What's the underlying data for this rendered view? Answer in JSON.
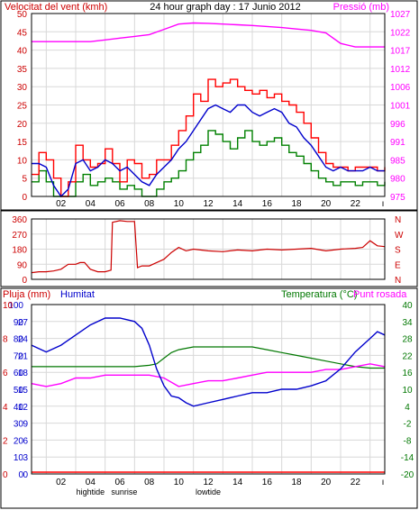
{
  "panel_wind": {
    "title_left": "Velocitat del vent (kmh)",
    "title_center": "24 hour graph day : 17 Junio 2012",
    "title_right": "Pressió (mb)",
    "yticks_left": [
      "50",
      "45",
      "40",
      "35",
      "30",
      "25",
      "20",
      "15",
      "10",
      "5",
      "0"
    ],
    "yticks_right": [
      "1027",
      "1022",
      "1017",
      "1012",
      "1006",
      "1001",
      "996",
      "991",
      "985",
      "980",
      "975"
    ],
    "xticks": [
      "02",
      "04",
      "06",
      "08",
      "10",
      "12",
      "14",
      "16",
      "18",
      "20",
      "22"
    ],
    "events": [
      "hightide",
      "sunrise",
      "lowtide"
    ]
  },
  "panel_dir": {
    "yticks_left": [
      "360",
      "270",
      "180",
      "90",
      "0"
    ],
    "compass": [
      "N",
      "W",
      "S",
      "E",
      "N"
    ]
  },
  "panel_temp": {
    "title_pluja": "Pluja (mm)",
    "title_humitat": "Humitat",
    "title_temp": "Temperatura (°C)",
    "title_dew": "Punt rosada",
    "yticks_pluja": [
      "10",
      "8",
      "6",
      "4",
      "2",
      "0"
    ],
    "yticks_humitat": [
      "100",
      "90",
      "80",
      "70",
      "60",
      "50",
      "40",
      "30",
      "20",
      "10",
      "0"
    ],
    "yticks_sub": [
      "27",
      "24",
      "21",
      "18",
      "15",
      "12",
      "9",
      "6",
      "3",
      "0"
    ],
    "yticks_temp": [
      "40",
      "34",
      "28",
      "22",
      "16",
      "10",
      "4",
      "-2",
      "-8",
      "-14",
      "-20"
    ],
    "xticks": [
      "02",
      "04",
      "06",
      "08",
      "10",
      "12",
      "14",
      "16",
      "18",
      "20",
      "22"
    ],
    "events": [
      "hightide",
      "sunrise",
      "lowtide"
    ]
  },
  "colors": {
    "wind_gust": "#ff0000",
    "wind_avg": "#0000cc",
    "wind_low": "#008000",
    "pressure": "#ff00ff",
    "direction": "#cc0000",
    "humidity": "#0000cc",
    "temperature": "#007700",
    "dewpoint": "#ff00ff",
    "rain": "#ff0000"
  },
  "chart_data": [
    {
      "type": "line",
      "title": "24 hour graph day : 17 Junio 2012",
      "x_unit": "hour",
      "xlim": [
        0,
        24
      ],
      "series": [
        {
          "name": "Velocitat del vent (kmh)",
          "axis": "left",
          "ylim": [
            0,
            50
          ],
          "x": [
            0,
            0.5,
            1,
            1.5,
            2,
            2.5,
            3,
            3.5,
            4,
            4.5,
            5,
            5.5,
            6,
            6.5,
            7,
            7.5,
            8,
            8.5,
            9,
            9.5,
            10,
            10.5,
            11,
            11.5,
            12,
            12.5,
            13,
            13.5,
            14,
            14.5,
            15,
            15.5,
            16,
            16.5,
            17,
            17.5,
            18,
            18.5,
            19,
            19.5,
            20,
            20.5,
            21,
            21.5,
            22,
            22.5,
            23,
            23.5,
            24
          ],
          "values": [
            6,
            12,
            10,
            5,
            0,
            4,
            14,
            10,
            8,
            9,
            13,
            9,
            4,
            10,
            9,
            5,
            6,
            10,
            10,
            14,
            18,
            22,
            28,
            26,
            32,
            30,
            31,
            32,
            30,
            29,
            28,
            29,
            27,
            28,
            26,
            25,
            23,
            20,
            16,
            12,
            9,
            8,
            8,
            7,
            8,
            8,
            8,
            7,
            8
          ]
        },
        {
          "name": "Velocitat mitjana",
          "axis": "left",
          "ylim": [
            0,
            50
          ],
          "x": [
            0,
            0.5,
            1,
            1.5,
            2,
            2.5,
            3,
            3.5,
            4,
            4.5,
            5,
            5.5,
            6,
            6.5,
            7,
            7.5,
            8,
            8.5,
            9,
            9.5,
            10,
            10.5,
            11,
            11.5,
            12,
            12.5,
            13,
            13.5,
            14,
            14.5,
            15,
            15.5,
            16,
            16.5,
            17,
            17.5,
            18,
            18.5,
            19,
            19.5,
            20,
            20.5,
            21,
            21.5,
            22,
            22.5,
            23,
            23.5,
            24
          ],
          "values": [
            9,
            9,
            8,
            3,
            0,
            2,
            9,
            10,
            7,
            8,
            10,
            9,
            7,
            8,
            6,
            4,
            3,
            6,
            8,
            10,
            13,
            15,
            18,
            21,
            24,
            25,
            24,
            23,
            25,
            25,
            23,
            22,
            23,
            24,
            23,
            20,
            19,
            16,
            14,
            11,
            8,
            7,
            8,
            7,
            7,
            7,
            8,
            7,
            7
          ]
        },
        {
          "name": "Velocitat mínima",
          "axis": "left",
          "ylim": [
            0,
            50
          ],
          "x": [
            0,
            0.5,
            1,
            1.5,
            2,
            2.5,
            3,
            3.5,
            4,
            4.5,
            5,
            5.5,
            6,
            6.5,
            7,
            7.5,
            8,
            8.5,
            9,
            9.5,
            10,
            10.5,
            11,
            11.5,
            12,
            12.5,
            13,
            13.5,
            14,
            14.5,
            15,
            15.5,
            16,
            16.5,
            17,
            17.5,
            18,
            18.5,
            19,
            19.5,
            20,
            20.5,
            21,
            21.5,
            22,
            22.5,
            23,
            23.5,
            24
          ],
          "values": [
            4,
            7,
            4,
            0,
            0,
            0,
            4,
            6,
            3,
            4,
            5,
            4,
            2,
            3,
            2,
            0,
            0,
            2,
            4,
            5,
            7,
            10,
            12,
            14,
            18,
            17,
            15,
            13,
            16,
            18,
            15,
            14,
            15,
            16,
            14,
            12,
            11,
            9,
            7,
            5,
            4,
            3,
            4,
            4,
            3,
            4,
            4,
            3,
            4
          ]
        },
        {
          "name": "Pressió (mb)",
          "axis": "right",
          "ylim": [
            975,
            1027
          ],
          "x": [
            0,
            1,
            2,
            3,
            4,
            5,
            6,
            7,
            8,
            9,
            10,
            11,
            12,
            13,
            14,
            15,
            16,
            17,
            18,
            19,
            20,
            21,
            22,
            23,
            24
          ],
          "values": [
            1019,
            1019,
            1019,
            1019,
            1019,
            1019.5,
            1020,
            1020.5,
            1021,
            1022.5,
            1024,
            1024.3,
            1024.2,
            1024,
            1023.8,
            1023.6,
            1023.3,
            1023,
            1022.6,
            1022.2,
            1021.5,
            1018.5,
            1017.5,
            1017.5,
            1017.5
          ]
        }
      ],
      "annotations": [
        "hightide",
        "sunrise",
        "lowtide"
      ]
    },
    {
      "type": "line",
      "xlim": [
        0,
        24
      ],
      "series": [
        {
          "name": "Direcció del vent",
          "ylim": [
            0,
            360
          ],
          "x": [
            0,
            0.5,
            1,
            1.5,
            2,
            2.5,
            3,
            3.3,
            3.6,
            4,
            4.5,
            5,
            5.4,
            5.5,
            6,
            6.5,
            7,
            7.2,
            7.5,
            8,
            8.5,
            9,
            9.5,
            10,
            10.5,
            11,
            12,
            13,
            14,
            15,
            16,
            17,
            18,
            19,
            20,
            21,
            22,
            22.5,
            23,
            23.5,
            24
          ],
          "values": [
            40,
            45,
            45,
            50,
            60,
            90,
            90,
            100,
            100,
            60,
            45,
            45,
            55,
            340,
            350,
            345,
            345,
            70,
            80,
            80,
            100,
            120,
            160,
            190,
            170,
            180,
            170,
            165,
            175,
            170,
            180,
            175,
            180,
            185,
            170,
            180,
            185,
            190,
            230,
            200,
            195
          ]
        }
      ]
    },
    {
      "type": "line",
      "xlim": [
        0,
        24
      ],
      "series": [
        {
          "name": "Humitat",
          "axis": "left",
          "ylim": [
            0,
            100
          ],
          "x": [
            0,
            1,
            2,
            3,
            4,
            5,
            6,
            7,
            7.5,
            8,
            8.5,
            9,
            9.5,
            10,
            10.5,
            11,
            12,
            13,
            14,
            15,
            16,
            17,
            18,
            19,
            20,
            21,
            22,
            23,
            23.5,
            24
          ],
          "values": [
            76,
            72,
            76,
            82,
            88,
            92,
            92,
            90,
            86,
            76,
            62,
            52,
            46,
            45,
            42,
            40,
            42,
            44,
            46,
            48,
            48,
            50,
            50,
            52,
            55,
            62,
            72,
            80,
            84,
            82
          ]
        },
        {
          "name": "Temperatura (°C)",
          "axis": "right",
          "ylim": [
            -20,
            40
          ],
          "x": [
            0,
            1,
            2,
            3,
            4,
            5,
            6,
            7,
            8,
            8.5,
            9,
            9.5,
            10,
            11,
            12,
            13,
            14,
            15,
            16,
            17,
            18,
            19,
            20,
            21,
            22,
            23,
            24
          ],
          "values": [
            18,
            18,
            18,
            18,
            18,
            18,
            18,
            18,
            18.5,
            19,
            21,
            23,
            24,
            25,
            25,
            25,
            25,
            25,
            24,
            23,
            22,
            21,
            20,
            19,
            18,
            17.5,
            17.5
          ]
        },
        {
          "name": "Punt rosada",
          "axis": "right",
          "ylim": [
            -20,
            40
          ],
          "x": [
            0,
            1,
            2,
            3,
            4,
            5,
            6,
            7,
            8,
            9,
            10,
            11,
            12,
            13,
            14,
            15,
            16,
            17,
            18,
            19,
            20,
            21,
            22,
            23,
            24
          ],
          "values": [
            12,
            11,
            12,
            14,
            14,
            15,
            15,
            15,
            15,
            14,
            11,
            12,
            13,
            13,
            14,
            15,
            16,
            16,
            16,
            16,
            17,
            17,
            18,
            19,
            18
          ]
        },
        {
          "name": "Pluja (mm)",
          "axis": "left2",
          "ylim": [
            0,
            10
          ],
          "x": [
            0,
            24
          ],
          "values": [
            0,
            0
          ]
        }
      ],
      "annotations": [
        "hightide",
        "sunrise",
        "lowtide"
      ]
    }
  ]
}
